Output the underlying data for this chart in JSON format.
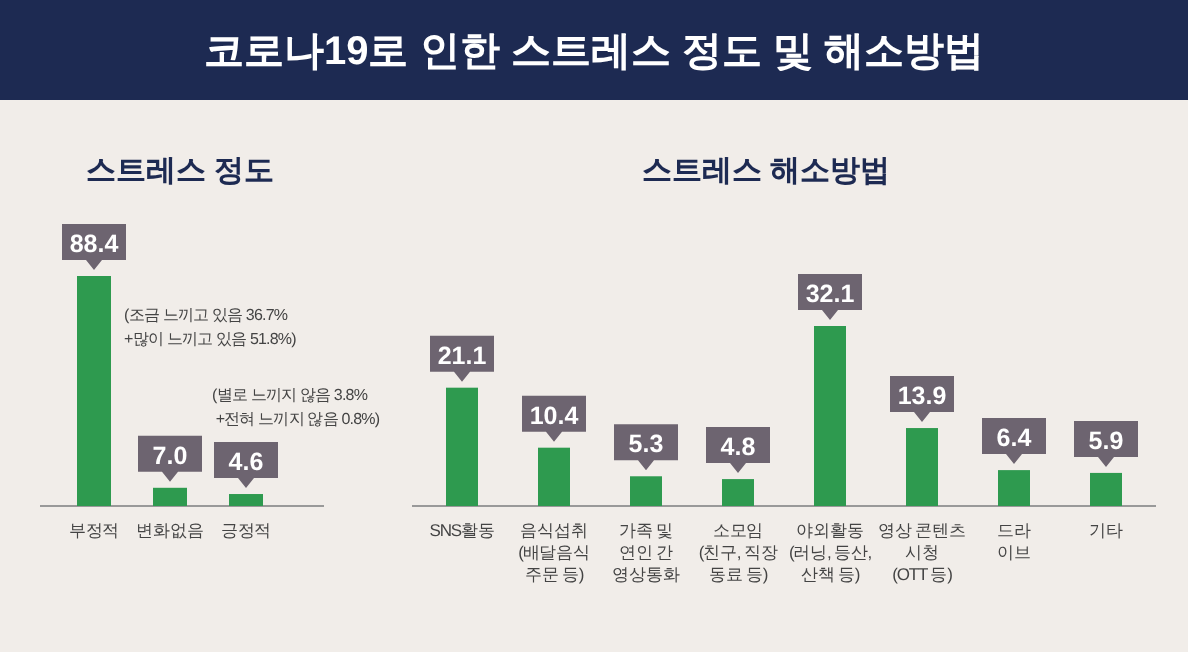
{
  "chart_data": [
    {
      "type": "other",
      "title": "코로나19로 인한 스트레스 정도 및 해소방법"
    },
    {
      "type": "bar",
      "title": "스트레스 정도",
      "categories": [
        "부정적",
        "변화없음",
        "긍정적"
      ],
      "values": [
        88.4,
        7.0,
        4.6
      ],
      "value_labels": [
        "88.4",
        "7.0",
        "4.6"
      ],
      "color": "#2e9a4f",
      "data_labels": true,
      "annotations": [
        "(조금 느끼고 있음 36.7%\n+많이 느끼고 있음 51.8%)",
        "(별로 느끼지 않음 3.8%\n +전혀 느끼지 않음 0.8%)"
      ]
    },
    {
      "type": "bar",
      "title": "스트레스 해소방법",
      "categories": [
        "SNS활동",
        "음식섭취\n(배달음식\n주문 등)",
        "가족 및\n연인 간\n영상통화",
        "소모임\n(친구, 직장\n동료 등)",
        "야외활동\n(러닝, 등산,\n산책 등)",
        "영상 콘텐츠\n시청\n(OTT 등)",
        "드라\n이브",
        "기타"
      ],
      "values": [
        21.1,
        10.4,
        5.3,
        4.8,
        32.1,
        13.9,
        6.4,
        5.9
      ],
      "color": "#2e9a4f",
      "data_labels": true
    }
  ]
}
